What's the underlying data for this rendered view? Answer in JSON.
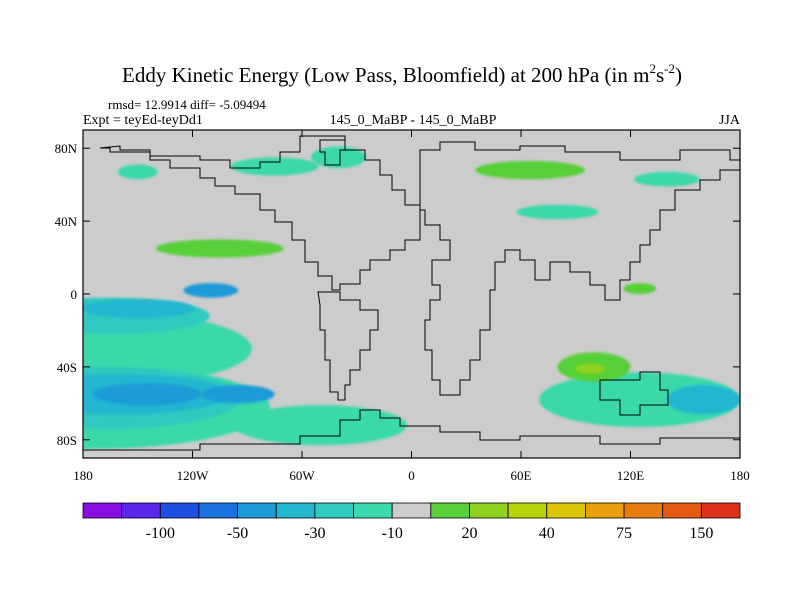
{
  "chart_data": {
    "type": "heatmap",
    "title": "Eddy Kinetic Energy (Low Pass, Bloomfield) at 200 hPa (in m",
    "title_units": {
      "sup1": "2",
      "mid": "s",
      "sup2": "-2",
      "close": ")"
    },
    "stats_line": "rmsd= 12.9914 diff= -5.09494",
    "left_label": "Expt = teyEd-teyDd1",
    "center_label": "145_0_MaBP - 145_0_MaBP",
    "right_label": "JJA",
    "x_axis": {
      "range": [
        -180,
        180
      ],
      "ticks": [
        -180,
        -120,
        -60,
        0,
        60,
        120,
        180
      ],
      "tick_labels": [
        "180",
        "120W",
        "60W",
        "0",
        "60E",
        "120E",
        "180"
      ]
    },
    "y_axis": {
      "range": [
        -90,
        90
      ],
      "ticks": [
        80,
        40,
        0,
        -40,
        -80
      ],
      "tick_labels": [
        "80N",
        "40N",
        "0",
        "40S",
        "80S"
      ]
    },
    "colorbar": {
      "colors": [
        "#8a0fe5",
        "#5a26ee",
        "#1f4fe0",
        "#1a73df",
        "#1a9bd8",
        "#22b6d0",
        "#2ec9bf",
        "#3ad8aa",
        "#cccccc",
        "#56cf39",
        "#8fd11e",
        "#b8d20e",
        "#ddc60a",
        "#e8a10c",
        "#e77c10",
        "#e55a13",
        "#e0321a"
      ],
      "labels": [
        "-100",
        "-50",
        "-30",
        "-10",
        "20",
        "40",
        "75",
        "150"
      ],
      "label_boundaries": [
        2,
        4,
        6,
        8,
        10,
        12,
        14,
        16
      ]
    },
    "field_background": "#cccccc",
    "regions": [
      {
        "level": "-10",
        "color": "#3ad8aa",
        "lon": -175,
        "lat": -30,
        "w": 175,
        "h": 42
      },
      {
        "level": "-30",
        "color": "#2ec9bf",
        "lon": -168,
        "lat": -12,
        "w": 115,
        "h": 20
      },
      {
        "level": "-50",
        "color": "#22b6d0",
        "lon": -150,
        "lat": -8,
        "w": 62,
        "h": 10
      },
      {
        "level": "-50",
        "color": "#1a9bd8",
        "lon": -110,
        "lat": 2,
        "w": 30,
        "h": 8
      },
      {
        "level": "-10",
        "color": "#3ad8aa",
        "lon": -175,
        "lat": -62,
        "w": 195,
        "h": 46
      },
      {
        "level": "-30",
        "color": "#2ec9bf",
        "lon": -168,
        "lat": -57,
        "w": 150,
        "h": 34
      },
      {
        "level": "-50",
        "color": "#22b6d0",
        "lon": -160,
        "lat": -55,
        "w": 120,
        "h": 22
      },
      {
        "level": "-50",
        "color": "#1a9bd8",
        "lon": -145,
        "lat": -55,
        "w": 60,
        "h": 12
      },
      {
        "level": "-50",
        "color": "#1a9bd8",
        "lon": -95,
        "lat": -55,
        "w": 40,
        "h": 10
      },
      {
        "level": "-10",
        "color": "#3ad8aa",
        "lon": -50,
        "lat": -72,
        "w": 95,
        "h": 22
      },
      {
        "level": "-10",
        "color": "#3ad8aa",
        "lon": 125,
        "lat": -58,
        "w": 110,
        "h": 30
      },
      {
        "level": "-50",
        "color": "#22b6d0",
        "lon": 160,
        "lat": -58,
        "w": 40,
        "h": 16
      },
      {
        "level": "-10",
        "color": "#3ad8aa",
        "lon": -150,
        "lat": 67,
        "w": 22,
        "h": 8
      },
      {
        "level": "-10",
        "color": "#3ad8aa",
        "lon": -75,
        "lat": 70,
        "w": 48,
        "h": 10
      },
      {
        "level": "-10",
        "color": "#3ad8aa",
        "lon": -40,
        "lat": 75,
        "w": 30,
        "h": 12
      },
      {
        "level": "-10",
        "color": "#3ad8aa",
        "lon": 80,
        "lat": 45,
        "w": 45,
        "h": 8
      },
      {
        "level": "-10",
        "color": "#3ad8aa",
        "lon": 140,
        "lat": 63,
        "w": 36,
        "h": 8
      },
      {
        "level": "20",
        "color": "#56cf39",
        "lon": -105,
        "lat": 25,
        "w": 70,
        "h": 10
      },
      {
        "level": "20",
        "color": "#56cf39",
        "lon": 65,
        "lat": 68,
        "w": 60,
        "h": 10
      },
      {
        "level": "20",
        "color": "#56cf39",
        "lon": 100,
        "lat": -40,
        "w": 40,
        "h": 16
      },
      {
        "level": "40",
        "color": "#8fd11e",
        "lon": 98,
        "lat": -41,
        "w": 16,
        "h": 6
      },
      {
        "level": "20",
        "color": "#56cf39",
        "lon": 125,
        "lat": 3,
        "w": 18,
        "h": 6
      }
    ]
  }
}
